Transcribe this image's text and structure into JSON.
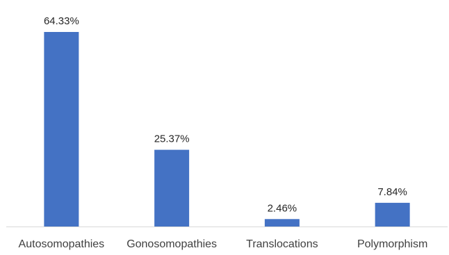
{
  "chart_data": {
    "type": "bar",
    "title": "",
    "xlabel": "",
    "ylabel": "",
    "categories": [
      "Autosomopathies",
      "Gonosomopathies",
      "Translocations",
      "Polymorphism"
    ],
    "values": [
      64.33,
      25.37,
      2.46,
      7.84
    ],
    "data_labels": [
      "64.33%",
      "25.37%",
      "2.46%",
      "7.84%"
    ],
    "ylim": [
      0,
      64.33
    ],
    "grid": false,
    "legend": "none",
    "colors": {
      "bar": "#4472C4",
      "axis": "#D9D9D9",
      "label": "#404040",
      "data_label": "#262626"
    }
  }
}
